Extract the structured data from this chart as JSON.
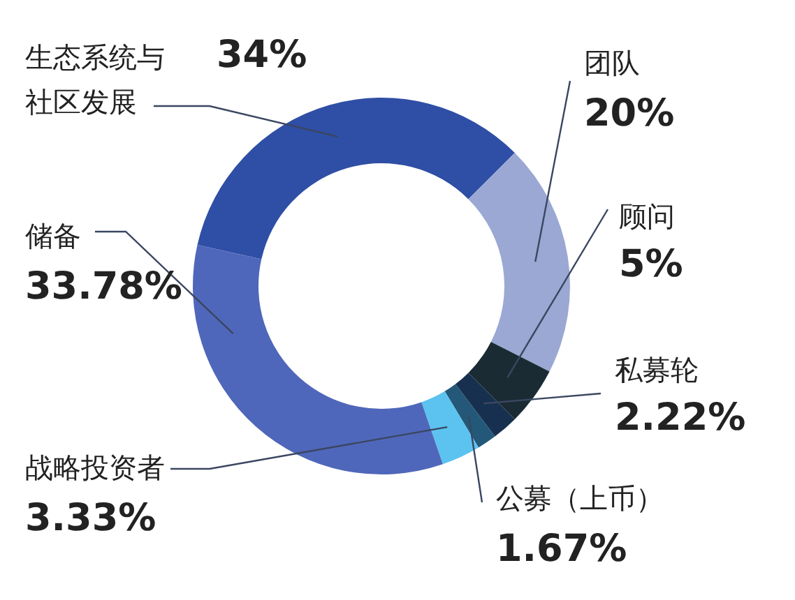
{
  "chart_data": {
    "type": "donut",
    "categories": [
      "生态系统与社区发展",
      "团队",
      "顾问",
      "私募轮",
      "公募（上币）",
      "战略投资者",
      "储备"
    ],
    "values": [
      34,
      20,
      5,
      2.22,
      1.67,
      3.33,
      33.78
    ],
    "value_labels": [
      "34%",
      "20%",
      "5%",
      "2.22%",
      "1.67%",
      "3.33%",
      "33.78%"
    ],
    "colors": [
      "#2f4ea5",
      "#9aa8d3",
      "#1b2b33",
      "#17304f",
      "#245878",
      "#5cc3f0",
      "#4f67ba"
    ]
  }
}
